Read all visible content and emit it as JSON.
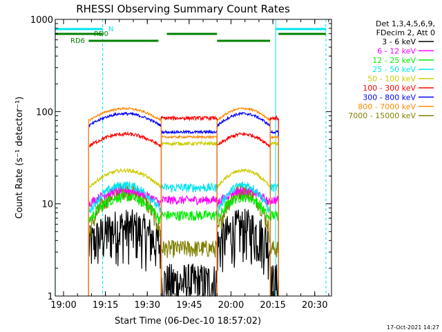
{
  "chart_data": {
    "type": "line",
    "title": "RHESSI Observing Summary Count Rates",
    "xlabel": "Start Time (06-Dec-10 18:57:02)",
    "ylabel": "Count Rate (s⁻¹ detector⁻¹)",
    "yscale": "log",
    "xlim": [
      "18:57:02",
      "20:36:00"
    ],
    "ylim": [
      1,
      1000
    ],
    "x_ticks": [
      "19:00",
      "19:15",
      "19:30",
      "19:45",
      "20:00",
      "20:15",
      "20:30"
    ],
    "y_ticks": [
      {
        "value": 1,
        "label": "1"
      },
      {
        "value": 10,
        "label": "10"
      },
      {
        "value": 100,
        "label": "100"
      },
      {
        "value": 1000,
        "label": "1000"
      }
    ],
    "legend_header": [
      "Det 1,3,4,5,6,9,",
      "FDecim 2, Att 0"
    ],
    "legend_position": "right",
    "timestamp": "17-Oct-2021 14:27",
    "flags": [
      {
        "name": "N",
        "color": "#00e5ee",
        "segments": [
          [
            "18:57",
            "19:14"
          ],
          [
            "20:16",
            "20:34"
          ]
        ]
      },
      {
        "name": "RD0",
        "color": "#008000",
        "segments": [
          [
            "18:57",
            "19:14"
          ],
          [
            "19:37",
            "19:55"
          ],
          [
            "20:17",
            "20:34"
          ]
        ]
      },
      {
        "name": "RD6",
        "color": "#008000",
        "segments": [
          [
            "19:09",
            "19:34"
          ],
          [
            "19:55",
            "20:14"
          ]
        ]
      }
    ],
    "cyan_lines": [
      {
        "time": "18:57",
        "style": "solid"
      },
      {
        "time": "19:14",
        "style": "dashed"
      },
      {
        "time": "20:16",
        "style": "solid"
      },
      {
        "time": "20:34",
        "style": "dashed"
      }
    ],
    "series": [
      {
        "name": "3 - 6 keV",
        "color": "#000000",
        "day_min": 3.5,
        "day_max": 5.5,
        "night": 1.4,
        "noise": 0.28
      },
      {
        "name": "6 - 12 keV",
        "color": "#ff00ff",
        "day_min": 10,
        "day_max": 14,
        "night": 11,
        "noise": 0.05
      },
      {
        "name": "12 - 25 keV",
        "color": "#00ee00",
        "day_min": 6.5,
        "day_max": 12,
        "night": 7.5,
        "noise": 0.06
      },
      {
        "name": "25 - 50 keV",
        "color": "#00e5ee",
        "day_min": 8,
        "day_max": 16,
        "night": 15,
        "noise": 0.05
      },
      {
        "name": "50 - 100 keV",
        "color": "#cccc00",
        "day_min": 15,
        "day_max": 23,
        "night": 45,
        "noise": 0.02
      },
      {
        "name": "100 - 300 keV",
        "color": "#ff0000",
        "day_min": 42,
        "day_max": 57,
        "night": 85,
        "noise": 0.02
      },
      {
        "name": "300 - 800 keV",
        "color": "#0000ff",
        "day_min": 70,
        "day_max": 95,
        "night": 60,
        "noise": 0.015
      },
      {
        "name": "800 - 7000 keV",
        "color": "#ff8800",
        "day_min": 80,
        "day_max": 108,
        "night": 53,
        "noise": 0.012
      },
      {
        "name": "7000 - 15000 keV",
        "color": "#808000",
        "day_min": 4.5,
        "day_max": 14,
        "night": 3.3,
        "noise": 0.1
      }
    ],
    "segments": [
      {
        "start": "19:09",
        "end": "19:35",
        "kind": "day"
      },
      {
        "start": "19:35",
        "end": "19:55",
        "kind": "night"
      },
      {
        "start": "19:55",
        "end": "20:14",
        "kind": "day"
      },
      {
        "start": "20:14",
        "end": "20:17",
        "kind": "night"
      }
    ]
  }
}
